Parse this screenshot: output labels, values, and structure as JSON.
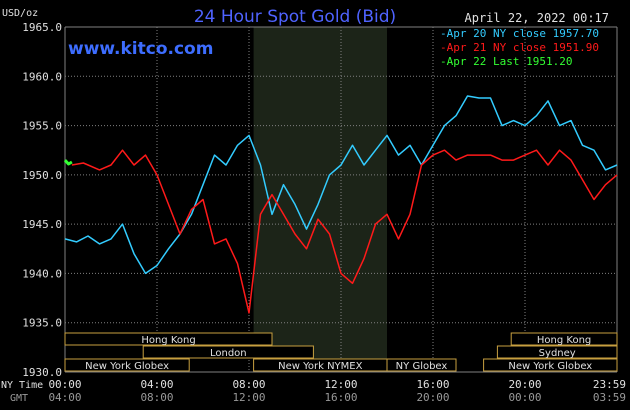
{
  "chart_data": {
    "type": "line",
    "title": "24 Hour Spot Gold (Bid)",
    "date_label": "April 22, 2022 00:17",
    "watermark": "www.kitco.com",
    "ylabel": "USD/oz",
    "ylim": [
      1930,
      1965
    ],
    "yticks": [
      "1965.0",
      "1960.0",
      "1955.0",
      "1950.0",
      "1945.0",
      "1940.0",
      "1935.0",
      "1930.0"
    ],
    "xlim": [
      0,
      24
    ],
    "xticks_ny": [
      "00:00",
      "04:00",
      "08:00",
      "12:00",
      "16:00",
      "20:00",
      "23:59"
    ],
    "xticks_gmt": [
      "04:00",
      "08:00",
      "12:00",
      "16:00",
      "20:00",
      "00:00",
      "03:59"
    ],
    "x_row_label_ny": "NY Time",
    "x_row_label_gmt": "GMT",
    "highlight_range": [
      8.2,
      14.0
    ],
    "legend": [
      {
        "text": "Apr 20 NY close 1957.70",
        "color": "#33ccff"
      },
      {
        "text": "Apr 21 NY close 1951.90",
        "color": "#ff1a1a"
      },
      {
        "text": "Apr 22 Last 1951.20",
        "color": "#33ff33"
      }
    ],
    "series": [
      {
        "color": "#33ccff",
        "points": [
          [
            0,
            1943.5
          ],
          [
            0.5,
            1943.2
          ],
          [
            1,
            1943.8
          ],
          [
            1.5,
            1943
          ],
          [
            2,
            1943.5
          ],
          [
            2.5,
            1945
          ],
          [
            3,
            1942
          ],
          [
            3.5,
            1940
          ],
          [
            4,
            1940.8
          ],
          [
            4.5,
            1942.5
          ],
          [
            5,
            1944
          ],
          [
            5.5,
            1946
          ],
          [
            6,
            1949
          ],
          [
            6.5,
            1952
          ],
          [
            7,
            1951
          ],
          [
            7.5,
            1953
          ],
          [
            8,
            1954
          ],
          [
            8.5,
            1951
          ],
          [
            9,
            1946
          ],
          [
            9.5,
            1949
          ],
          [
            10,
            1947
          ],
          [
            10.5,
            1944.5
          ],
          [
            11,
            1947
          ],
          [
            11.5,
            1950
          ],
          [
            12,
            1951
          ],
          [
            12.5,
            1953
          ],
          [
            13,
            1951
          ],
          [
            13.5,
            1952.5
          ],
          [
            14,
            1954
          ],
          [
            14.5,
            1952
          ],
          [
            15,
            1953
          ],
          [
            15.5,
            1951
          ],
          [
            16,
            1953
          ],
          [
            16.5,
            1955
          ],
          [
            17,
            1956
          ],
          [
            17.5,
            1958
          ],
          [
            18,
            1957.8
          ],
          [
            18.5,
            1957.8
          ],
          [
            19,
            1955
          ],
          [
            19.5,
            1955.5
          ],
          [
            20,
            1955
          ],
          [
            20.5,
            1956
          ],
          [
            21,
            1957.5
          ],
          [
            21.5,
            1955
          ],
          [
            22,
            1955.5
          ],
          [
            22.5,
            1953
          ],
          [
            23,
            1952.5
          ],
          [
            23.5,
            1950.5
          ],
          [
            24,
            1951
          ]
        ]
      },
      {
        "color": "#ff1a1a",
        "points": [
          [
            0.3,
            1951
          ],
          [
            0.8,
            1951.2
          ],
          [
            1.5,
            1950.5
          ],
          [
            2,
            1951
          ],
          [
            2.5,
            1952.5
          ],
          [
            3,
            1951
          ],
          [
            3.5,
            1952
          ],
          [
            4,
            1950
          ],
          [
            4.5,
            1947
          ],
          [
            5,
            1944
          ],
          [
            5.5,
            1946.5
          ],
          [
            6,
            1947.5
          ],
          [
            6.5,
            1943
          ],
          [
            7,
            1943.5
          ],
          [
            7.5,
            1941
          ],
          [
            8,
            1936
          ],
          [
            8.5,
            1946
          ],
          [
            9,
            1948
          ],
          [
            9.5,
            1946
          ],
          [
            10,
            1944
          ],
          [
            10.5,
            1942.5
          ],
          [
            11,
            1945.5
          ],
          [
            11.5,
            1944
          ],
          [
            12,
            1940
          ],
          [
            12.5,
            1939
          ],
          [
            13,
            1941.5
          ],
          [
            13.5,
            1945
          ],
          [
            14,
            1946
          ],
          [
            14.5,
            1943.5
          ],
          [
            15,
            1946
          ],
          [
            15.5,
            1951
          ],
          [
            16,
            1952
          ],
          [
            16.5,
            1952.5
          ],
          [
            17,
            1951.5
          ],
          [
            17.5,
            1952
          ],
          [
            18,
            1952
          ],
          [
            18.5,
            1952
          ],
          [
            19,
            1951.5
          ],
          [
            19.5,
            1951.5
          ],
          [
            20,
            1952
          ],
          [
            20.5,
            1952.5
          ],
          [
            21,
            1951
          ],
          [
            21.5,
            1952.5
          ],
          [
            22,
            1951.5
          ],
          [
            22.5,
            1949.5
          ],
          [
            23,
            1947.5
          ],
          [
            23.5,
            1949
          ],
          [
            24,
            1950
          ]
        ]
      },
      {
        "color": "#33ff33",
        "points": [
          [
            0,
            1951.5
          ],
          [
            0.15,
            1951.1
          ],
          [
            0.3,
            1951.3
          ]
        ]
      }
    ],
    "sessions": [
      {
        "label": "Hong Kong",
        "start": 0,
        "end": 9,
        "row": 1
      },
      {
        "label": "London",
        "start": 3.4,
        "end": 10.8,
        "row": 2
      },
      {
        "label": "New York Globex",
        "start": 0,
        "end": 5.4,
        "row": 3
      },
      {
        "label": "New York NYMEX",
        "start": 8.2,
        "end": 14.0,
        "row": 3
      },
      {
        "label": "NY Globex",
        "start": 14.0,
        "end": 17.0,
        "row": 3
      },
      {
        "label": "Hong Kong",
        "start": 19.4,
        "end": 24,
        "row": 1
      },
      {
        "label": "Sydney",
        "start": 18.8,
        "end": 24,
        "row": 2
      },
      {
        "label": "New York Globex",
        "start": 18.2,
        "end": 24,
        "row": 3
      }
    ]
  }
}
